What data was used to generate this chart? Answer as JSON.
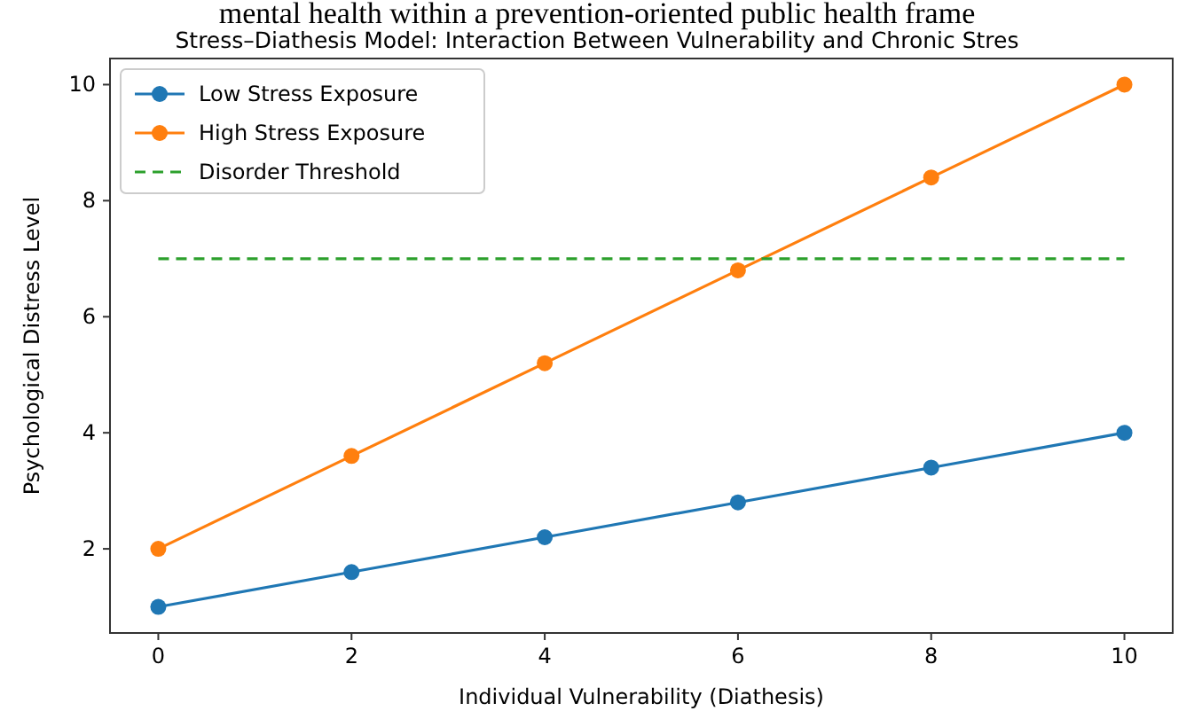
{
  "chart_data": {
    "type": "line",
    "title": "Stress–Diathesis Model: Interaction Between Vulnerability and Chronic Stres",
    "xlabel": "Individual Vulnerability (Diathesis)",
    "ylabel": "Psychological Distress Level",
    "annotations": [
      "mental health within a prevention-oriented public health frame"
    ],
    "x": [
      0,
      2,
      4,
      6,
      8,
      10
    ],
    "series": [
      {
        "name": "Low Stress Exposure",
        "color": "#1f77b4",
        "values": [
          1,
          1.6,
          2.2,
          2.8,
          3.4,
          4.0
        ]
      },
      {
        "name": "High Stress Exposure",
        "color": "#ff7f0e",
        "values": [
          2,
          3.6,
          5.2,
          6.8,
          8.4,
          10
        ]
      },
      {
        "name": "Disorder Threshold",
        "color": "#2ca02c",
        "x": [
          0,
          10
        ],
        "values": [
          7,
          7
        ],
        "marker": "none",
        "line_style": "dashed"
      }
    ],
    "marker": "circle",
    "line_style": "solid",
    "xlim": [
      -0.5,
      10.5
    ],
    "ylim": [
      0.55,
      10.45
    ],
    "xticks": [
      0,
      2,
      4,
      6,
      8,
      10
    ],
    "yticks": [
      2,
      4,
      6,
      8,
      10
    ],
    "grid": false,
    "legend": "top left"
  }
}
